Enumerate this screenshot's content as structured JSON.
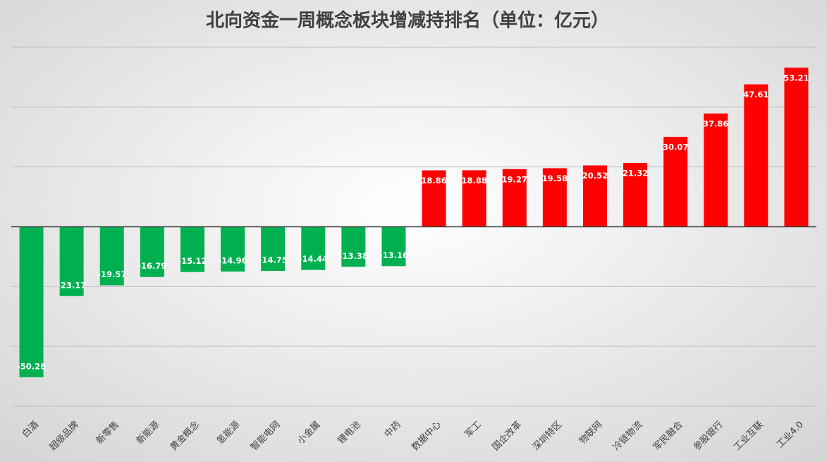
{
  "chart_data": {
    "type": "bar",
    "title": "北向资金一周概念板块增减持排名（单位：亿元）",
    "categories": [
      "白酒",
      "超级品牌",
      "新零售",
      "新能源",
      "黄金概念",
      "氢能源",
      "智能电网",
      "小金属",
      "锂电池",
      "中药",
      "数据中心",
      "军工",
      "国企改革",
      "深圳特区",
      "物联网",
      "冷链物流",
      "军民融合",
      "参股银行",
      "工业互联",
      "工业4.0"
    ],
    "values": [
      -50.28,
      -23.17,
      -19.57,
      -16.79,
      -15.12,
      -14.96,
      -14.75,
      -14.44,
      -13.38,
      -13.16,
      18.86,
      18.88,
      19.27,
      19.58,
      20.52,
      21.32,
      30.07,
      37.86,
      47.61,
      53.21
    ],
    "positive_color": "#ff0000",
    "negative_color": "#00b050",
    "ylim": [
      -60,
      60
    ],
    "yticks": [
      -60,
      -40,
      -20,
      0,
      20,
      40,
      60
    ],
    "grid": true
  }
}
